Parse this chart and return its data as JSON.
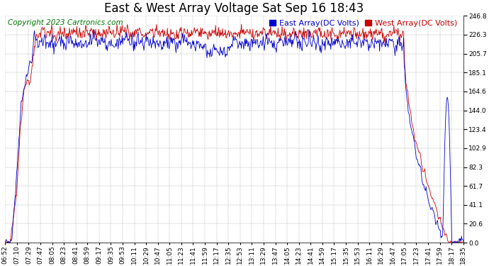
{
  "title": "East & West Array Voltage Sat Sep 16 18:43",
  "copyright": "Copyright 2023 Cartronics.com",
  "legend_east": "East Array(DC Volts)",
  "legend_west": "West Array(DC Volts)",
  "east_color": "#0000cc",
  "west_color": "#cc0000",
  "bg_color": "#ffffff",
  "grid_color": "#999999",
  "yticks": [
    0.0,
    20.6,
    41.1,
    61.7,
    82.3,
    102.9,
    123.4,
    144.0,
    164.6,
    185.1,
    205.7,
    226.3,
    246.8
  ],
  "ymin": 0.0,
  "ymax": 246.8,
  "x_labels": [
    "06:52",
    "07:10",
    "07:29",
    "07:47",
    "08:05",
    "08:23",
    "08:41",
    "08:59",
    "09:17",
    "09:35",
    "09:53",
    "10:11",
    "10:29",
    "10:47",
    "11:05",
    "11:23",
    "11:41",
    "11:59",
    "12:17",
    "12:35",
    "12:53",
    "13:11",
    "13:29",
    "13:47",
    "14:05",
    "14:23",
    "14:41",
    "14:59",
    "15:17",
    "15:35",
    "15:53",
    "16:11",
    "16:29",
    "16:47",
    "17:05",
    "17:23",
    "17:41",
    "17:59",
    "18:17",
    "18:35"
  ],
  "title_fontsize": 12,
  "copyright_fontsize": 7.5,
  "legend_fontsize": 8,
  "tick_fontsize": 6.5,
  "figwidth": 6.9,
  "figheight": 3.75,
  "dpi": 100
}
